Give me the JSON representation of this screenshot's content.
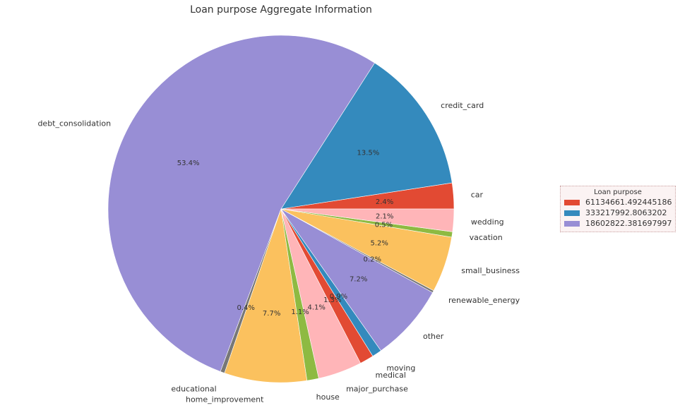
{
  "chart_data": {
    "type": "pie",
    "title": "Loan purpose Aggregate Information",
    "slices": [
      {
        "label": "car",
        "value": 2.4,
        "pct_label": "2.4%",
        "color": "#E24A33"
      },
      {
        "label": "credit_card",
        "value": 13.5,
        "pct_label": "13.5%",
        "color": "#348ABD"
      },
      {
        "label": "debt_consolidation",
        "value": 53.4,
        "pct_label": "53.4%",
        "color": "#988ED5"
      },
      {
        "label": "educational",
        "value": 0.4,
        "pct_label": "0.4%",
        "color": "#777777"
      },
      {
        "label": "home_improvement",
        "value": 7.7,
        "pct_label": "7.7%",
        "color": "#FBC15E"
      },
      {
        "label": "house",
        "value": 1.1,
        "pct_label": "1.1%",
        "color": "#8EBA42"
      },
      {
        "label": "major_purchase",
        "value": 4.1,
        "pct_label": "4.1%",
        "color": "#FFB5B8"
      },
      {
        "label": "medical",
        "value": 1.3,
        "pct_label": "1.3%",
        "color": "#E24A33"
      },
      {
        "label": "moving",
        "value": 0.9,
        "pct_label": "0.9%",
        "color": "#348ABD"
      },
      {
        "label": "other",
        "value": 7.2,
        "pct_label": "7.2%",
        "color": "#988ED5"
      },
      {
        "label": "renewable_energy",
        "value": 0.2,
        "pct_label": "0.2%",
        "color": "#777777"
      },
      {
        "label": "small_business",
        "value": 5.2,
        "pct_label": "5.2%",
        "color": "#FBC15E"
      },
      {
        "label": "vacation",
        "value": 0.5,
        "pct_label": "0.5%",
        "color": "#8EBA42"
      },
      {
        "label": "wedding",
        "value": 2.1,
        "pct_label": "2.1%",
        "color": "#FFB5B8"
      }
    ],
    "legend": {
      "title": "Loan purpose",
      "placement": "right",
      "entries": [
        {
          "label": "61134661.492445186",
          "color": "#E24A33"
        },
        {
          "label": "333217992.8063202",
          "color": "#348ABD"
        },
        {
          "label": "18602822.381697997",
          "color": "#988ED5"
        }
      ]
    }
  }
}
